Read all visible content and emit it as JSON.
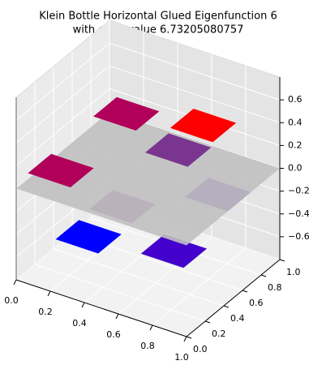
{
  "chart_data": {
    "type": "tiles3d",
    "title": "Klein Bottle Horizontal Glued Eigenfunction 6",
    "subtitle": "with eigenvalue 6.73205080757",
    "xlim": [
      0,
      1
    ],
    "ylim": [
      0,
      1
    ],
    "zlim": [
      -0.8,
      0.8
    ],
    "xticks": [
      {
        "value": 0,
        "label": "0.0"
      },
      {
        "value": 0.2,
        "label": "0.2"
      },
      {
        "value": 0.4,
        "label": "0.4"
      },
      {
        "value": 0.6,
        "label": "0.6"
      },
      {
        "value": 0.8,
        "label": "0.8"
      },
      {
        "value": 1,
        "label": "1.0"
      }
    ],
    "yticks": [
      {
        "value": 0,
        "label": "0.0"
      },
      {
        "value": 0.2,
        "label": "0.2"
      },
      {
        "value": 0.4,
        "label": "0.4"
      },
      {
        "value": 0.6,
        "label": "0.6"
      },
      {
        "value": 0.8,
        "label": "0.8"
      },
      {
        "value": 1,
        "label": "1.0"
      }
    ],
    "zticks": [
      {
        "value": -0.6,
        "label": "−0.6"
      },
      {
        "value": -0.4,
        "label": "−0.4"
      },
      {
        "value": -0.2,
        "label": "−0.2"
      },
      {
        "value": 0,
        "label": "0.0"
      },
      {
        "value": 0.2,
        "label": "0.2"
      },
      {
        "value": 0.4,
        "label": "0.4"
      },
      {
        "value": 0.6,
        "label": "0.6"
      }
    ],
    "grid": true,
    "tile_size": 0.25,
    "plane": {
      "z": 0,
      "color": "#c0c0c0"
    },
    "tiles": [
      {
        "x": 0.2,
        "y": 0.41,
        "z": -0.6,
        "color": "#0000ff"
      },
      {
        "x": 0.63,
        "y": 0.54,
        "z": -0.6,
        "color": "#4400cc"
      },
      {
        "x": 0.73,
        "y": 0.83,
        "z": -0.25,
        "color": "#5a1fb0"
      },
      {
        "x": 0.42,
        "y": 0.37,
        "z": -0.2,
        "color": "#7a3590"
      },
      {
        "x": 0.54,
        "y": 0.75,
        "z": 0.1,
        "color": "#7a3590"
      },
      {
        "x": 0.24,
        "y": 0.04,
        "z": 0.25,
        "color": "#b0005a"
      },
      {
        "x": 0.4,
        "y": 0.45,
        "z": 0.55,
        "color": "#b0005a"
      },
      {
        "x": 0.78,
        "y": 0.58,
        "z": 0.55,
        "color": "#ff0000"
      }
    ]
  }
}
